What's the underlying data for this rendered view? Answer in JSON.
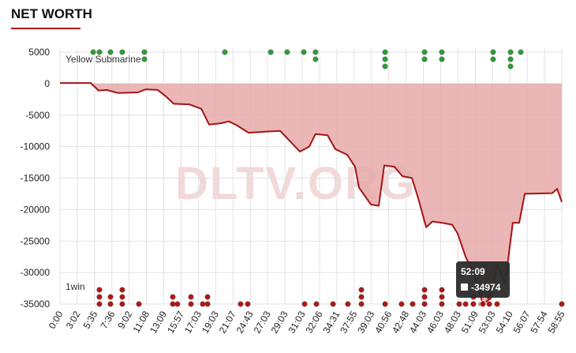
{
  "chart_data": {
    "type": "area",
    "title": "NET WORTH",
    "watermark": "DLTV.ORG",
    "xlim": [
      0,
      29
    ],
    "xticks": [
      {
        "value": 0,
        "label": "0:00"
      },
      {
        "value": 1,
        "label": "3:02"
      },
      {
        "value": 2,
        "label": "5:35"
      },
      {
        "value": 3,
        "label": "7:36"
      },
      {
        "value": 4,
        "label": "9:02"
      },
      {
        "value": 5,
        "label": "11:08"
      },
      {
        "value": 6,
        "label": "13:09"
      },
      {
        "value": 7,
        "label": "15:57"
      },
      {
        "value": 8,
        "label": "17:03"
      },
      {
        "value": 9,
        "label": "19:03"
      },
      {
        "value": 10,
        "label": "21:07"
      },
      {
        "value": 11,
        "label": "24:43"
      },
      {
        "value": 12,
        "label": "27:03"
      },
      {
        "value": 13,
        "label": "29:03"
      },
      {
        "value": 14,
        "label": "31:03"
      },
      {
        "value": 15,
        "label": "32:06"
      },
      {
        "value": 16,
        "label": "34:31"
      },
      {
        "value": 17,
        "label": "37:55"
      },
      {
        "value": 18,
        "label": "39:03"
      },
      {
        "value": 19,
        "label": "40:56"
      },
      {
        "value": 20,
        "label": "42:48"
      },
      {
        "value": 21,
        "label": "44:03"
      },
      {
        "value": 22,
        "label": "46:03"
      },
      {
        "value": 23,
        "label": "48:03"
      },
      {
        "value": 24,
        "label": "51:09"
      },
      {
        "value": 25,
        "label": "53:03"
      },
      {
        "value": 26,
        "label": "54:10"
      },
      {
        "value": 27,
        "label": "56:07"
      },
      {
        "value": 28,
        "label": "57:54"
      },
      {
        "value": 29,
        "label": "58:55"
      }
    ],
    "ylim": [
      -35000,
      5000
    ],
    "yticks": [
      5000,
      0,
      -5000,
      -10000,
      -15000,
      -20000,
      -25000,
      -30000,
      -35000
    ],
    "grid": true,
    "series": [
      {
        "color": "#a31515",
        "fill": "#e6a9a9",
        "x": [
          0,
          1.78,
          2.23,
          2.69,
          3.37,
          4.51,
          4.97,
          5.65,
          6.11,
          6.57,
          7.48,
          8.17,
          8.62,
          9.3,
          9.76,
          10.21,
          10.9,
          12.04,
          12.72,
          13.31,
          13.86,
          14.41,
          14.77,
          15.46,
          15.91,
          16.6,
          17.05,
          17.28,
          17.97,
          18.42,
          18.74,
          19.33,
          19.79,
          20.34,
          20.7,
          21.16,
          21.52,
          22.07,
          22.66,
          22.98,
          23.44,
          23.89,
          24.44,
          24.9,
          25.26,
          25.72,
          26.17,
          26.54,
          26.86,
          28.45,
          28.73,
          29
        ],
        "values": [
          100,
          100,
          -1100,
          -1000,
          -1500,
          -1400,
          -900,
          -1000,
          -2000,
          -3200,
          -3300,
          -4000,
          -6500,
          -6300,
          -6000,
          -6600,
          -7800,
          -7600,
          -7500,
          -9200,
          -10800,
          -10000,
          -8000,
          -8200,
          -10400,
          -11300,
          -13200,
          -16500,
          -19200,
          -19400,
          -13000,
          -13200,
          -14700,
          -15000,
          -18200,
          -22800,
          -21900,
          -22100,
          -22400,
          -23800,
          -27500,
          -30000,
          -34974,
          -34100,
          -28700,
          -31800,
          -22100,
          -22100,
          -17500,
          -17400,
          -16700,
          -18800
        ]
      }
    ],
    "events": [
      {
        "name": "Yellow Submarine",
        "color": "#2f9b3a",
        "row": 5000,
        "x": [
          1.92,
          2.28,
          2.92,
          3.6,
          4.88,
          9.53,
          12.18,
          13.13,
          14.09,
          14.77,
          18.79,
          21.07,
          22.07,
          25.03,
          26.04,
          26.63
        ],
        "counts": [
          1,
          1,
          1,
          1,
          2,
          1,
          1,
          1,
          1,
          2,
          3,
          2,
          2,
          2,
          3,
          1
        ]
      },
      {
        "name": "1win",
        "color": "#b01818",
        "row": -35000,
        "x": [
          2.28,
          2.92,
          3.6,
          4.56,
          6.52,
          6.79,
          7.57,
          8.25,
          8.53,
          10.44,
          10.85,
          14.14,
          14.82,
          15.78,
          16.64,
          17.42,
          18.79,
          19.74,
          20.38,
          21.07,
          22.07,
          23.07,
          23.44,
          23.89,
          24.35,
          24.81,
          25.26,
          29
        ],
        "counts": [
          3,
          2,
          3,
          1,
          2,
          1,
          2,
          1,
          2,
          1,
          1,
          1,
          1,
          1,
          1,
          3,
          1,
          1,
          1,
          3,
          3,
          1,
          1,
          2,
          1,
          2,
          1,
          1
        ]
      }
    ],
    "tooltip": {
      "time": "52:09",
      "value": -34974
    }
  }
}
